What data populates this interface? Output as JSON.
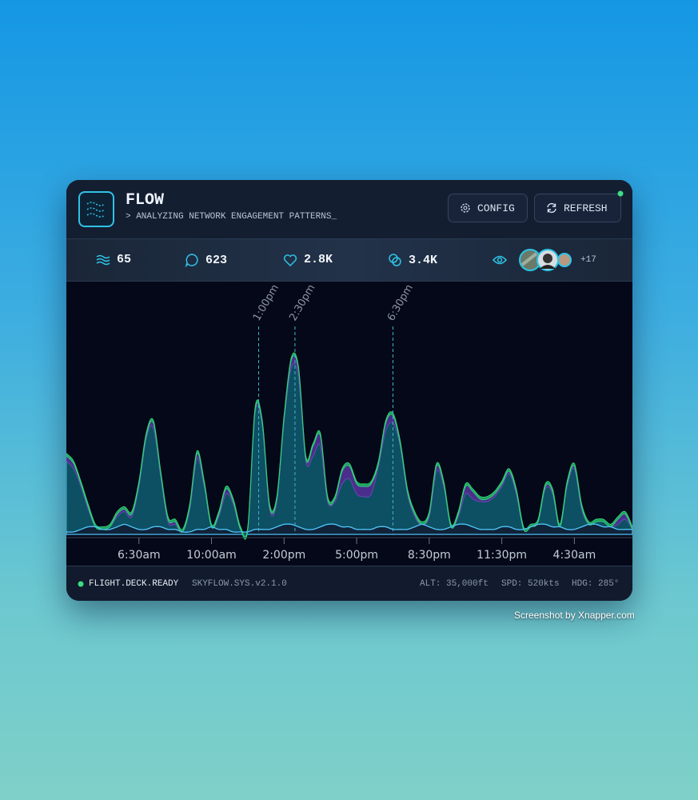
{
  "header": {
    "title": "FLOW",
    "subtitle": "> ANALYZING NETWORK ENGAGEMENT PATTERNS_",
    "buttons": [
      "CONFIG",
      "REFRESH"
    ]
  },
  "stats": {
    "flows": "65",
    "comments": "623",
    "likes": "2.8K",
    "shares": "3.4K",
    "viewers_more": "+17"
  },
  "chart_data": {
    "type": "area",
    "categories": [
      null,
      null,
      null,
      null,
      null,
      null,
      null,
      null,
      null,
      null,
      "6:30am",
      null,
      null,
      null,
      null,
      null,
      null,
      null,
      null,
      null,
      "10:00am",
      null,
      null,
      null,
      null,
      null,
      null,
      null,
      null,
      null,
      "2:00pm",
      null,
      null,
      null,
      null,
      null,
      null,
      null,
      null,
      null,
      "5:00pm",
      null,
      null,
      null,
      null,
      null,
      null,
      null,
      null,
      null,
      "8:30pm",
      null,
      null,
      null,
      null,
      null,
      null,
      null,
      null,
      null,
      "11:30pm",
      null,
      null,
      null,
      null,
      null,
      null,
      null,
      null,
      null,
      "4:30am",
      null,
      null,
      null,
      null,
      null,
      null,
      null,
      null
    ],
    "ylim": [
      0,
      100
    ],
    "stacked": true,
    "series": [
      {
        "color": "#4fc3f7",
        "values": [
          1,
          1,
          2,
          3,
          3,
          2,
          2,
          3,
          4,
          3,
          2,
          2,
          3,
          3,
          2,
          2,
          1,
          1,
          2,
          2,
          3,
          2,
          2,
          1,
          1,
          1,
          2,
          2,
          2,
          3,
          4,
          4,
          3,
          2,
          2,
          3,
          4,
          4,
          3,
          3,
          2,
          2,
          2,
          3,
          3,
          2,
          2,
          2,
          3,
          4,
          3,
          2,
          2,
          3,
          4,
          4,
          3,
          2,
          2,
          2,
          3,
          3,
          2,
          2,
          3,
          4,
          4,
          3,
          3,
          2,
          2,
          3,
          4,
          4,
          3,
          3,
          2,
          2,
          2
        ]
      },
      {
        "color": "#2ab3c8",
        "values": [
          28,
          25,
          17,
          7,
          0,
          0,
          1,
          4,
          5,
          4,
          17,
          36,
          39,
          20,
          3,
          2,
          0,
          9,
          28,
          17,
          0,
          5,
          14,
          11,
          1,
          1,
          46,
          41,
          8,
          10,
          41,
          62,
          59,
          27,
          29,
          32,
          9,
          9,
          17,
          19,
          14,
          13,
          14,
          24,
          38,
          42,
          33,
          14,
          4,
          0,
          4,
          23,
          17,
          0,
          3,
          12,
          11,
          11,
          11,
          13,
          16,
          21,
          14,
          0,
          0,
          1,
          14,
          13,
          0,
          17,
          24,
          7,
          0,
          1,
          2,
          0,
          2,
          4,
          0
        ]
      },
      {
        "color": "#6a3fb0",
        "values": [
          2,
          2,
          1,
          1,
          0,
          0,
          0,
          1,
          1,
          1,
          1,
          1,
          2,
          1,
          1,
          1,
          0,
          1,
          2,
          1,
          0,
          1,
          2,
          1,
          0,
          0,
          1,
          1,
          1,
          1,
          1,
          3,
          3,
          1,
          4,
          4,
          1,
          1,
          5,
          5,
          4,
          4,
          4,
          1,
          3,
          3,
          1,
          1,
          1,
          0,
          1,
          2,
          1,
          0,
          1,
          3,
          3,
          1,
          1,
          1,
          1,
          1,
          1,
          0,
          0,
          0,
          1,
          1,
          0,
          1,
          1,
          1,
          0,
          0,
          0,
          0,
          2,
          2,
          0
        ]
      },
      {
        "color": "#2fd27a",
        "values": [
          1,
          1,
          1,
          1,
          1,
          1,
          1,
          1,
          1,
          1,
          1,
          1,
          1,
          1,
          1,
          1,
          1,
          1,
          1,
          1,
          1,
          1,
          1,
          1,
          1,
          1,
          1,
          1,
          1,
          1,
          1,
          1,
          1,
          1,
          1,
          1,
          1,
          1,
          1,
          1,
          1,
          1,
          1,
          1,
          1,
          1,
          1,
          1,
          1,
          1,
          1,
          1,
          1,
          1,
          1,
          1,
          1,
          1,
          1,
          1,
          1,
          1,
          1,
          1,
          1,
          1,
          1,
          1,
          1,
          1,
          1,
          1,
          1,
          1,
          1,
          1,
          1,
          1,
          1
        ]
      }
    ],
    "annotations": [
      {
        "label": "1:00pm",
        "x": 26.5
      },
      {
        "label": "2:30pm",
        "x": 31.5
      },
      {
        "label": "6:30pm",
        "x": 45
      }
    ]
  },
  "footer": {
    "status": "FLIGHT.DECK.READY",
    "version": "SKYFLOW.SYS.v2.1.0",
    "alt": "ALT: 35,000ft",
    "spd": "SPD: 520kts",
    "hdg": "HDG: 285°"
  },
  "watermark": "Screenshot by Xnapper.com"
}
